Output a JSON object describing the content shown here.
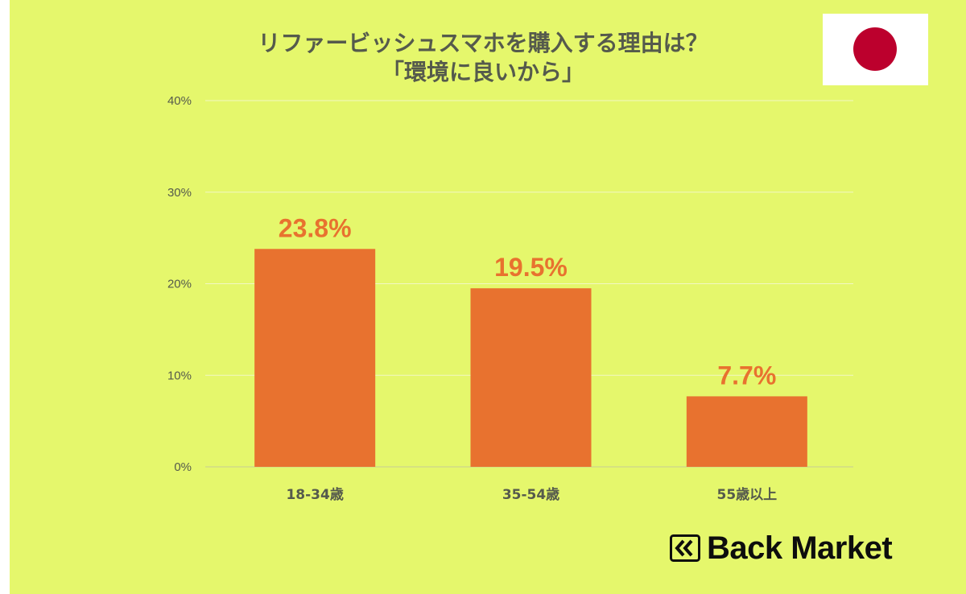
{
  "header": {
    "title_line1": "リファービッシュスマホを購入する理由は？",
    "title_line2": "「環境に良いから」"
  },
  "brand": {
    "name": "Back Market",
    "logo_icon": "double-chevron-icon"
  },
  "flag": {
    "icon": "japan-flag-icon",
    "disc_color": "#bc002d"
  },
  "colors": {
    "background": "#e5f76c",
    "bar": "#e8722f",
    "label": "#e8722f",
    "text": "#555a4c"
  },
  "chart_data": {
    "type": "bar",
    "title": "リファービッシュスマホを購入する理由は？「環境に良いから」",
    "categories": [
      "18-34歳",
      "35-54歳",
      "55歳以上"
    ],
    "values": [
      23.8,
      19.5,
      7.7
    ],
    "value_labels": [
      "23.8%",
      "19.5%",
      "7.7%"
    ],
    "ylim": [
      0,
      40
    ],
    "yticks": [
      0,
      10,
      20,
      30,
      40
    ],
    "ytick_labels": [
      "0%",
      "10%",
      "20%",
      "30%",
      "40%"
    ],
    "grid": true,
    "legend": "none"
  }
}
